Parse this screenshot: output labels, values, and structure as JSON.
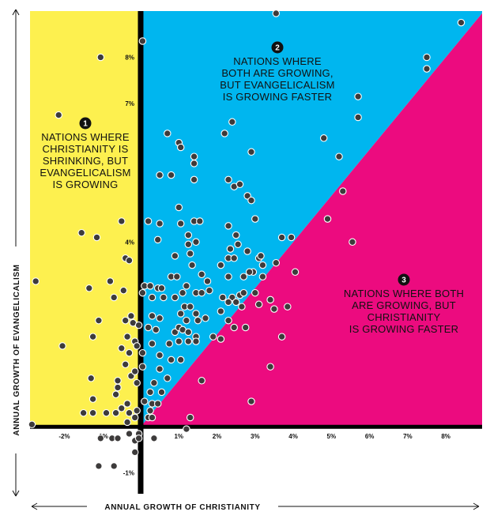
{
  "chart_data": {
    "type": "scatter",
    "xlabel": "ANNUAL GROWTH OF CHRISTIANITY",
    "ylabel": "ANNUAL GROWTH OF  EVANGELICALISM",
    "xlim": [
      -2.9,
      8.95
    ],
    "ylim": [
      -1.45,
      9.0
    ],
    "x_ticks": [
      {
        "value": -2,
        "label": "-2%"
      },
      {
        "value": -1,
        "label": "-1%"
      },
      {
        "value": 1,
        "label": "1%"
      },
      {
        "value": 2,
        "label": "2%"
      },
      {
        "value": 3,
        "label": "3%"
      },
      {
        "value": 4,
        "label": "4%"
      },
      {
        "value": 5,
        "label": "5%"
      },
      {
        "value": 6,
        "label": "6%"
      },
      {
        "value": 7,
        "label": "7%"
      },
      {
        "value": 8,
        "label": "8%"
      }
    ],
    "y_ticks": [
      {
        "value": 8,
        "label": "8%"
      },
      {
        "value": 7,
        "label": "7%"
      },
      {
        "value": 4,
        "label": "4%"
      },
      {
        "value": -1,
        "label": "-1%"
      }
    ],
    "regions": [
      {
        "number": "1",
        "lines": [
          "NATIONS WHERE",
          "CHRISTIANITY IS",
          "SHRINKING, BUT",
          "EVANGELICALISM",
          "IS GROWING"
        ],
        "color": "#fdf04f"
      },
      {
        "number": "2",
        "lines": [
          "NATIONS WHERE",
          "BOTH ARE GROWING,",
          "BUT EVANGELICALISM",
          "IS GROWING FASTER"
        ],
        "color": "#00b6ef"
      },
      {
        "number": "3",
        "lines": [
          "NATIONS WHERE BOTH",
          "ARE GROWING, BUT",
          "CHRISTIANITY",
          "IS GROWING FASTER"
        ],
        "color": "#ec0b7f"
      }
    ],
    "point_color": "#3d3b3b",
    "points": [
      [
        3.55,
        8.95
      ],
      [
        8.4,
        8.75
      ],
      [
        -1.05,
        8.0
      ],
      [
        -2.15,
        6.75
      ],
      [
        2.4,
        6.6
      ],
      [
        0.05,
        8.35
      ],
      [
        7.5,
        8.0
      ],
      [
        7.5,
        7.75
      ],
      [
        5.7,
        7.15
      ],
      [
        5.7,
        6.7
      ],
      [
        0.7,
        6.35
      ],
      [
        1.0,
        6.15
      ],
      [
        1.05,
        6.05
      ],
      [
        2.2,
        6.35
      ],
      [
        2.9,
        5.95
      ],
      [
        4.8,
        6.25
      ],
      [
        5.2,
        5.85
      ],
      [
        1.4,
        5.85
      ],
      [
        1.4,
        5.7
      ],
      [
        0.5,
        5.45
      ],
      [
        0.8,
        5.45
      ],
      [
        1.4,
        5.35
      ],
      [
        2.3,
        5.35
      ],
      [
        2.45,
        5.2
      ],
      [
        2.6,
        5.25
      ],
      [
        2.8,
        5.0
      ],
      [
        2.9,
        4.9
      ],
      [
        5.3,
        5.1
      ],
      [
        1.0,
        4.75
      ],
      [
        0.2,
        4.45
      ],
      [
        0.5,
        4.4
      ],
      [
        1.05,
        4.4
      ],
      [
        1.4,
        4.45
      ],
      [
        1.55,
        4.45
      ],
      [
        2.3,
        4.35
      ],
      [
        3.0,
        4.5
      ],
      [
        -1.55,
        4.2
      ],
      [
        -1.15,
        4.1
      ],
      [
        -0.5,
        4.45
      ],
      [
        3.7,
        4.1
      ],
      [
        3.95,
        4.1
      ],
      [
        4.9,
        4.5
      ],
      [
        5.55,
        4.0
      ],
      [
        0.45,
        4.05
      ],
      [
        1.25,
        4.15
      ],
      [
        2.5,
        4.15
      ],
      [
        1.25,
        3.95
      ],
      [
        1.45,
        4.0
      ],
      [
        1.3,
        3.75
      ],
      [
        2.35,
        3.85
      ],
      [
        2.55,
        3.95
      ],
      [
        2.3,
        3.65
      ],
      [
        2.45,
        3.65
      ],
      [
        2.8,
        3.8
      ],
      [
        3.1,
        3.65
      ],
      [
        3.15,
        3.7
      ],
      [
        0.9,
        3.7
      ],
      [
        1.35,
        3.5
      ],
      [
        2.1,
        3.5
      ],
      [
        2.95,
        3.35
      ],
      [
        3.2,
        3.5
      ],
      [
        3.55,
        3.55
      ],
      [
        4.05,
        3.35
      ],
      [
        -0.4,
        3.65
      ],
      [
        -0.3,
        3.6
      ],
      [
        -2.75,
        3.15
      ],
      [
        0.1,
        3.05
      ],
      [
        0.25,
        3.05
      ],
      [
        0.45,
        3.0
      ],
      [
        0.55,
        3.0
      ],
      [
        0.8,
        3.25
      ],
      [
        0.95,
        3.25
      ],
      [
        1.2,
        3.05
      ],
      [
        1.6,
        3.3
      ],
      [
        1.75,
        3.15
      ],
      [
        2.3,
        3.25
      ],
      [
        2.7,
        3.25
      ],
      [
        2.85,
        3.35
      ],
      [
        3.2,
        3.25
      ],
      [
        -0.8,
        3.15
      ],
      [
        -1.35,
        3.0
      ],
      [
        -0.45,
        2.95
      ],
      [
        -0.7,
        2.8
      ],
      [
        0.05,
        2.9
      ],
      [
        0.3,
        2.8
      ],
      [
        0.6,
        2.8
      ],
      [
        0.9,
        2.8
      ],
      [
        1.1,
        2.9
      ],
      [
        1.45,
        2.9
      ],
      [
        1.6,
        2.9
      ],
      [
        1.8,
        2.95
      ],
      [
        2.15,
        2.8
      ],
      [
        2.4,
        2.8
      ],
      [
        2.6,
        2.85
      ],
      [
        2.7,
        2.9
      ],
      [
        3.0,
        2.9
      ],
      [
        3.4,
        2.75
      ],
      [
        2.3,
        2.7
      ],
      [
        2.5,
        2.7
      ],
      [
        2.65,
        2.6
      ],
      [
        3.1,
        2.65
      ],
      [
        3.5,
        2.55
      ],
      [
        3.85,
        2.6
      ],
      [
        1.15,
        2.6
      ],
      [
        1.3,
        2.6
      ],
      [
        1.05,
        2.45
      ],
      [
        1.2,
        2.3
      ],
      [
        1.45,
        2.45
      ],
      [
        1.5,
        2.3
      ],
      [
        1.7,
        2.35
      ],
      [
        2.1,
        2.5
      ],
      [
        2.3,
        2.3
      ],
      [
        2.45,
        2.15
      ],
      [
        2.75,
        2.15
      ],
      [
        0.3,
        2.4
      ],
      [
        0.5,
        2.35
      ],
      [
        -0.25,
        2.4
      ],
      [
        -0.4,
        2.3
      ],
      [
        -0.2,
        2.25
      ],
      [
        -1.1,
        2.3
      ],
      [
        -0.05,
        2.2
      ],
      [
        0.2,
        2.15
      ],
      [
        0.4,
        2.1
      ],
      [
        0.9,
        2.05
      ],
      [
        1.0,
        2.15
      ],
      [
        1.1,
        2.1
      ],
      [
        1.25,
        2.05
      ],
      [
        1.45,
        1.95
      ],
      [
        -2.05,
        1.75
      ],
      [
        -1.25,
        1.95
      ],
      [
        0.75,
        1.8
      ],
      [
        1.0,
        1.85
      ],
      [
        1.25,
        1.85
      ],
      [
        1.45,
        1.85
      ],
      [
        1.9,
        1.95
      ],
      [
        2.1,
        1.9
      ],
      [
        3.7,
        1.95
      ],
      [
        -0.15,
        1.85
      ],
      [
        -0.1,
        1.75
      ],
      [
        -0.35,
        1.95
      ],
      [
        -0.5,
        1.7
      ],
      [
        0.3,
        1.8
      ],
      [
        0.05,
        1.6
      ],
      [
        0.5,
        1.55
      ],
      [
        0.8,
        1.45
      ],
      [
        1.05,
        1.45
      ],
      [
        -0.3,
        1.6
      ],
      [
        -0.4,
        1.35
      ],
      [
        -0.25,
        1.1
      ],
      [
        0.05,
        1.3
      ],
      [
        -0.15,
        1.2
      ],
      [
        0.5,
        1.25
      ],
      [
        0.7,
        1.05
      ],
      [
        0.35,
        0.95
      ],
      [
        0.55,
        0.75
      ],
      [
        0.25,
        0.75
      ],
      [
        0.1,
        0.55
      ],
      [
        0.3,
        0.5
      ],
      [
        0.45,
        0.5
      ],
      [
        0.2,
        0.2
      ],
      [
        0.25,
        0.35
      ],
      [
        3.4,
        1.3
      ],
      [
        1.6,
        1.0
      ],
      [
        2.9,
        0.55
      ],
      [
        0.3,
        0.2
      ],
      [
        1.3,
        0.2
      ],
      [
        1.2,
        -0.05
      ],
      [
        -1.3,
        1.05
      ],
      [
        -0.6,
        1.0
      ],
      [
        -0.6,
        0.85
      ],
      [
        -0.1,
        0.95
      ],
      [
        -0.65,
        0.7
      ],
      [
        -0.35,
        0.5
      ],
      [
        -0.5,
        0.4
      ],
      [
        -0.65,
        0.3
      ],
      [
        -0.3,
        0.3
      ],
      [
        -1.5,
        0.3
      ],
      [
        -1.25,
        0.3
      ],
      [
        -0.9,
        0.3
      ],
      [
        -1.25,
        0.6
      ],
      [
        -0.1,
        0.35
      ],
      [
        -0.35,
        0.1
      ],
      [
        -0.15,
        0.2
      ],
      [
        -2.85,
        0.05
      ],
      [
        -1.05,
        -0.25
      ],
      [
        -0.75,
        -0.25
      ],
      [
        -0.6,
        -0.25
      ],
      [
        -0.3,
        -0.15
      ],
      [
        -0.15,
        -0.3
      ],
      [
        -0.05,
        -0.15
      ],
      [
        -0.05,
        -0.25
      ],
      [
        -1.1,
        -0.85
      ],
      [
        -0.7,
        -0.85
      ],
      [
        -0.15,
        -0.55
      ],
      [
        0.35,
        -0.25
      ]
    ]
  },
  "icons": [
    "region-number-badge"
  ]
}
